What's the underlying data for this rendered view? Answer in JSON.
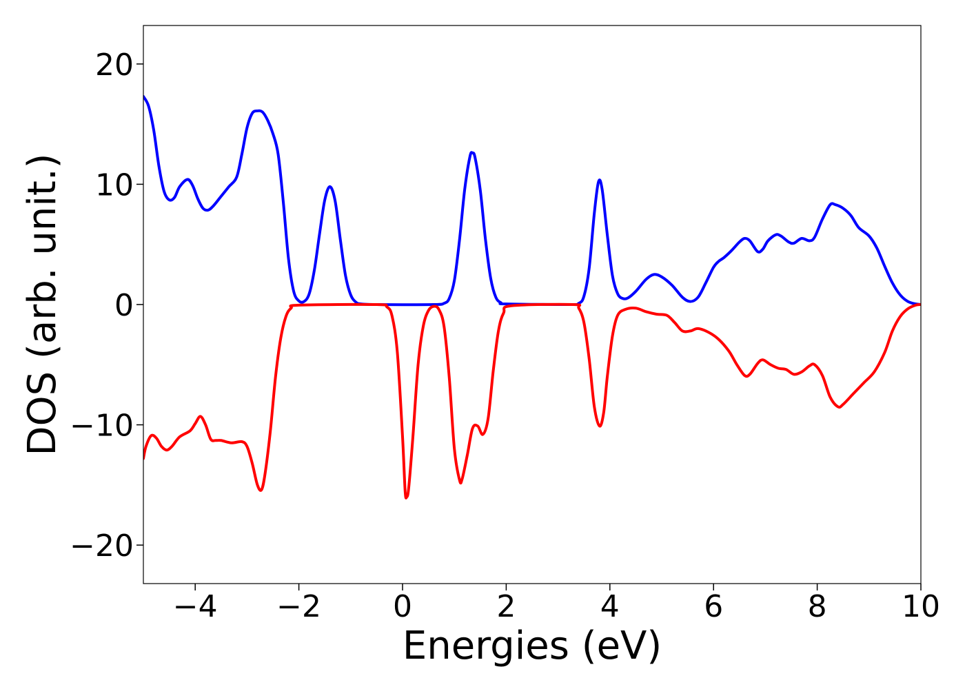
{
  "chart_data": {
    "type": "line",
    "title": "",
    "xlabel": "Energies (eV)",
    "ylabel": "DOS (arb. unit.)",
    "xlim": [
      -5,
      10
    ],
    "ylim": [
      -23.2,
      23.2
    ],
    "grid": false,
    "legend": "none",
    "x_ticks": [
      {
        "value": -4,
        "label": "−4"
      },
      {
        "value": -2,
        "label": "−2"
      },
      {
        "value": 0,
        "label": "0"
      },
      {
        "value": 2,
        "label": "2"
      },
      {
        "value": 4,
        "label": "4"
      },
      {
        "value": 6,
        "label": "6"
      },
      {
        "value": 8,
        "label": "8"
      },
      {
        "value": 10,
        "label": "10"
      }
    ],
    "y_ticks": [
      {
        "value": -20,
        "label": "−20"
      },
      {
        "value": -10,
        "label": "−10"
      },
      {
        "value": 0,
        "label": "0"
      },
      {
        "value": 10,
        "label": "10"
      },
      {
        "value": 20,
        "label": "20"
      }
    ],
    "series": [
      {
        "color": "#0000ff",
        "points": [
          [
            -5.0,
            17.3
          ],
          [
            -4.9,
            16.5
          ],
          [
            -4.8,
            14.5
          ],
          [
            -4.7,
            11.5
          ],
          [
            -4.6,
            9.4
          ],
          [
            -4.5,
            8.7
          ],
          [
            -4.4,
            8.9
          ],
          [
            -4.3,
            9.8
          ],
          [
            -4.15,
            10.4
          ],
          [
            -4.05,
            9.9
          ],
          [
            -3.95,
            8.8
          ],
          [
            -3.85,
            8.0
          ],
          [
            -3.75,
            7.85
          ],
          [
            -3.65,
            8.2
          ],
          [
            -3.5,
            9.0
          ],
          [
            -3.35,
            9.8
          ],
          [
            -3.2,
            10.6
          ],
          [
            -3.1,
            12.5
          ],
          [
            -3.0,
            14.7
          ],
          [
            -2.9,
            15.9
          ],
          [
            -2.8,
            16.1
          ],
          [
            -2.7,
            16.0
          ],
          [
            -2.6,
            15.3
          ],
          [
            -2.5,
            14.2
          ],
          [
            -2.4,
            12.5
          ],
          [
            -2.3,
            8.5
          ],
          [
            -2.2,
            3.8
          ],
          [
            -2.1,
            1.1
          ],
          [
            -2.0,
            0.3
          ],
          [
            -1.9,
            0.25
          ],
          [
            -1.8,
            0.9
          ],
          [
            -1.7,
            2.9
          ],
          [
            -1.6,
            5.9
          ],
          [
            -1.5,
            8.7
          ],
          [
            -1.4,
            9.8
          ],
          [
            -1.3,
            8.6
          ],
          [
            -1.2,
            5.4
          ],
          [
            -1.1,
            2.4
          ],
          [
            -1.0,
            0.8
          ],
          [
            -0.9,
            0.2
          ],
          [
            -0.8,
            0.05
          ],
          [
            -0.5,
            0.0
          ],
          [
            0.6,
            0.0
          ],
          [
            0.8,
            0.1
          ],
          [
            0.9,
            0.5
          ],
          [
            1.0,
            2.0
          ],
          [
            1.1,
            5.4
          ],
          [
            1.2,
            9.6
          ],
          [
            1.3,
            12.3
          ],
          [
            1.35,
            12.6
          ],
          [
            1.4,
            12.2
          ],
          [
            1.5,
            9.5
          ],
          [
            1.6,
            5.4
          ],
          [
            1.7,
            2.2
          ],
          [
            1.8,
            0.6
          ],
          [
            1.9,
            0.15
          ],
          [
            2.0,
            0.05
          ],
          [
            3.2,
            0.0
          ],
          [
            3.4,
            0.1
          ],
          [
            3.5,
            0.7
          ],
          [
            3.6,
            3.0
          ],
          [
            3.7,
            7.6
          ],
          [
            3.78,
            10.2
          ],
          [
            3.85,
            9.6
          ],
          [
            3.95,
            5.8
          ],
          [
            4.05,
            2.4
          ],
          [
            4.15,
            0.9
          ],
          [
            4.25,
            0.5
          ],
          [
            4.35,
            0.55
          ],
          [
            4.5,
            1.1
          ],
          [
            4.7,
            2.1
          ],
          [
            4.85,
            2.5
          ],
          [
            5.0,
            2.3
          ],
          [
            5.2,
            1.6
          ],
          [
            5.4,
            0.6
          ],
          [
            5.55,
            0.25
          ],
          [
            5.7,
            0.6
          ],
          [
            5.85,
            1.8
          ],
          [
            6.0,
            3.1
          ],
          [
            6.1,
            3.6
          ],
          [
            6.2,
            3.9
          ],
          [
            6.35,
            4.5
          ],
          [
            6.5,
            5.2
          ],
          [
            6.6,
            5.5
          ],
          [
            6.7,
            5.3
          ],
          [
            6.85,
            4.4
          ],
          [
            6.95,
            4.6
          ],
          [
            7.05,
            5.3
          ],
          [
            7.2,
            5.8
          ],
          [
            7.3,
            5.7
          ],
          [
            7.45,
            5.2
          ],
          [
            7.55,
            5.1
          ],
          [
            7.7,
            5.5
          ],
          [
            7.85,
            5.3
          ],
          [
            7.95,
            5.6
          ],
          [
            8.1,
            7.1
          ],
          [
            8.25,
            8.3
          ],
          [
            8.35,
            8.3
          ],
          [
            8.5,
            8.0
          ],
          [
            8.65,
            7.4
          ],
          [
            8.8,
            6.4
          ],
          [
            9.0,
            5.7
          ],
          [
            9.15,
            4.7
          ],
          [
            9.3,
            3.2
          ],
          [
            9.45,
            1.8
          ],
          [
            9.6,
            0.8
          ],
          [
            9.75,
            0.25
          ],
          [
            9.9,
            0.05
          ],
          [
            10.0,
            0.0
          ]
        ]
      },
      {
        "color": "#ff0000",
        "points": [
          [
            -5.0,
            -12.8
          ],
          [
            -4.95,
            -11.8
          ],
          [
            -4.85,
            -10.9
          ],
          [
            -4.75,
            -11.1
          ],
          [
            -4.65,
            -11.8
          ],
          [
            -4.55,
            -12.1
          ],
          [
            -4.45,
            -11.8
          ],
          [
            -4.3,
            -11.0
          ],
          [
            -4.1,
            -10.5
          ],
          [
            -4.0,
            -9.9
          ],
          [
            -3.9,
            -9.3
          ],
          [
            -3.8,
            -10.0
          ],
          [
            -3.7,
            -11.2
          ],
          [
            -3.6,
            -11.3
          ],
          [
            -3.5,
            -11.3
          ],
          [
            -3.3,
            -11.5
          ],
          [
            -3.1,
            -11.4
          ],
          [
            -3.0,
            -11.8
          ],
          [
            -2.9,
            -13.2
          ],
          [
            -2.8,
            -15.0
          ],
          [
            -2.72,
            -15.4
          ],
          [
            -2.65,
            -14.0
          ],
          [
            -2.55,
            -10.5
          ],
          [
            -2.45,
            -6.0
          ],
          [
            -2.35,
            -2.8
          ],
          [
            -2.25,
            -1.0
          ],
          [
            -2.15,
            -0.3
          ],
          [
            -2.0,
            -0.05
          ],
          [
            -0.5,
            0.0
          ],
          [
            -0.3,
            -0.2
          ],
          [
            -0.2,
            -1.0
          ],
          [
            -0.1,
            -4.0
          ],
          [
            0.0,
            -11.0
          ],
          [
            0.05,
            -15.5
          ],
          [
            0.08,
            -16.0
          ],
          [
            0.12,
            -15.2
          ],
          [
            0.2,
            -11.0
          ],
          [
            0.3,
            -5.0
          ],
          [
            0.4,
            -1.8
          ],
          [
            0.5,
            -0.5
          ],
          [
            0.6,
            -0.15
          ],
          [
            0.7,
            -0.4
          ],
          [
            0.8,
            -1.8
          ],
          [
            0.9,
            -6.0
          ],
          [
            1.0,
            -12.0
          ],
          [
            1.1,
            -14.6
          ],
          [
            1.15,
            -14.5
          ],
          [
            1.25,
            -12.5
          ],
          [
            1.35,
            -10.3
          ],
          [
            1.45,
            -10.1
          ],
          [
            1.55,
            -10.8
          ],
          [
            1.65,
            -9.5
          ],
          [
            1.75,
            -5.5
          ],
          [
            1.85,
            -2.2
          ],
          [
            1.95,
            -0.7
          ],
          [
            2.1,
            -0.1
          ],
          [
            3.3,
            0.0
          ],
          [
            3.4,
            -0.3
          ],
          [
            3.5,
            -1.5
          ],
          [
            3.6,
            -4.5
          ],
          [
            3.7,
            -8.5
          ],
          [
            3.8,
            -10.1
          ],
          [
            3.88,
            -9.0
          ],
          [
            3.95,
            -6.0
          ],
          [
            4.05,
            -2.6
          ],
          [
            4.15,
            -0.9
          ],
          [
            4.3,
            -0.4
          ],
          [
            4.5,
            -0.3
          ],
          [
            4.7,
            -0.6
          ],
          [
            4.9,
            -0.8
          ],
          [
            5.1,
            -0.9
          ],
          [
            5.25,
            -1.5
          ],
          [
            5.4,
            -2.2
          ],
          [
            5.55,
            -2.2
          ],
          [
            5.7,
            -2.0
          ],
          [
            5.9,
            -2.3
          ],
          [
            6.1,
            -2.9
          ],
          [
            6.3,
            -3.9
          ],
          [
            6.45,
            -5.0
          ],
          [
            6.6,
            -5.9
          ],
          [
            6.7,
            -5.8
          ],
          [
            6.85,
            -4.9
          ],
          [
            6.95,
            -4.6
          ],
          [
            7.1,
            -5.0
          ],
          [
            7.25,
            -5.3
          ],
          [
            7.4,
            -5.4
          ],
          [
            7.55,
            -5.8
          ],
          [
            7.7,
            -5.6
          ],
          [
            7.85,
            -5.1
          ],
          [
            7.95,
            -5.0
          ],
          [
            8.1,
            -5.9
          ],
          [
            8.25,
            -7.7
          ],
          [
            8.4,
            -8.5
          ],
          [
            8.5,
            -8.3
          ],
          [
            8.7,
            -7.4
          ],
          [
            8.9,
            -6.5
          ],
          [
            9.1,
            -5.6
          ],
          [
            9.3,
            -4.0
          ],
          [
            9.45,
            -2.2
          ],
          [
            9.6,
            -1.0
          ],
          [
            9.75,
            -0.35
          ],
          [
            9.9,
            -0.05
          ],
          [
            10.0,
            0.0
          ]
        ]
      }
    ]
  }
}
